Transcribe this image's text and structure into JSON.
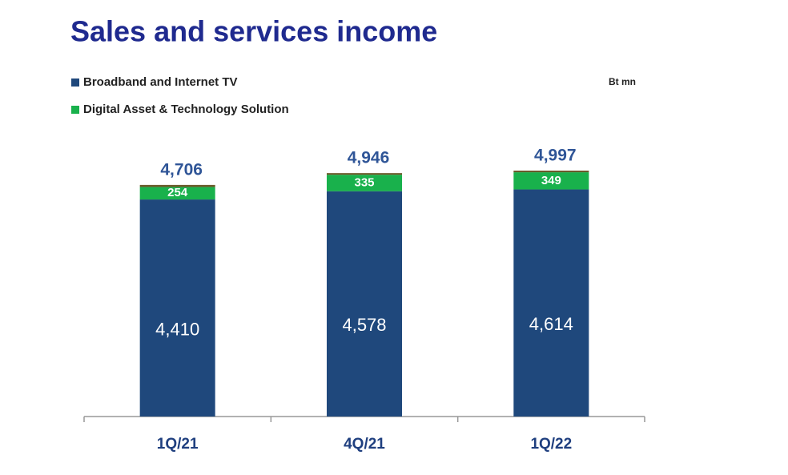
{
  "chart_data": {
    "type": "stacked_bar",
    "title": "Sales and services income",
    "unit": "Bt mn",
    "categories": [
      "1Q/21",
      "4Q/21",
      "1Q/22"
    ],
    "series": [
      {
        "name": "Broadband and Internet TV",
        "color": "#1f487c",
        "values": [
          4410,
          4578,
          4614
        ],
        "value_labels": [
          "4,410",
          "4,578",
          "4,614"
        ]
      },
      {
        "name": "Digital Asset & Technology Solution",
        "color": "#19b14c",
        "values": [
          254,
          335,
          349
        ],
        "value_labels": [
          "254",
          "335",
          "349"
        ]
      },
      {
        "color": "#6b5a2a",
        "values": [
          42,
          33,
          34
        ]
      }
    ],
    "totals": [
      4706,
      4946,
      4997
    ],
    "total_labels": [
      "4,706",
      "4,946",
      "4,997"
    ]
  }
}
